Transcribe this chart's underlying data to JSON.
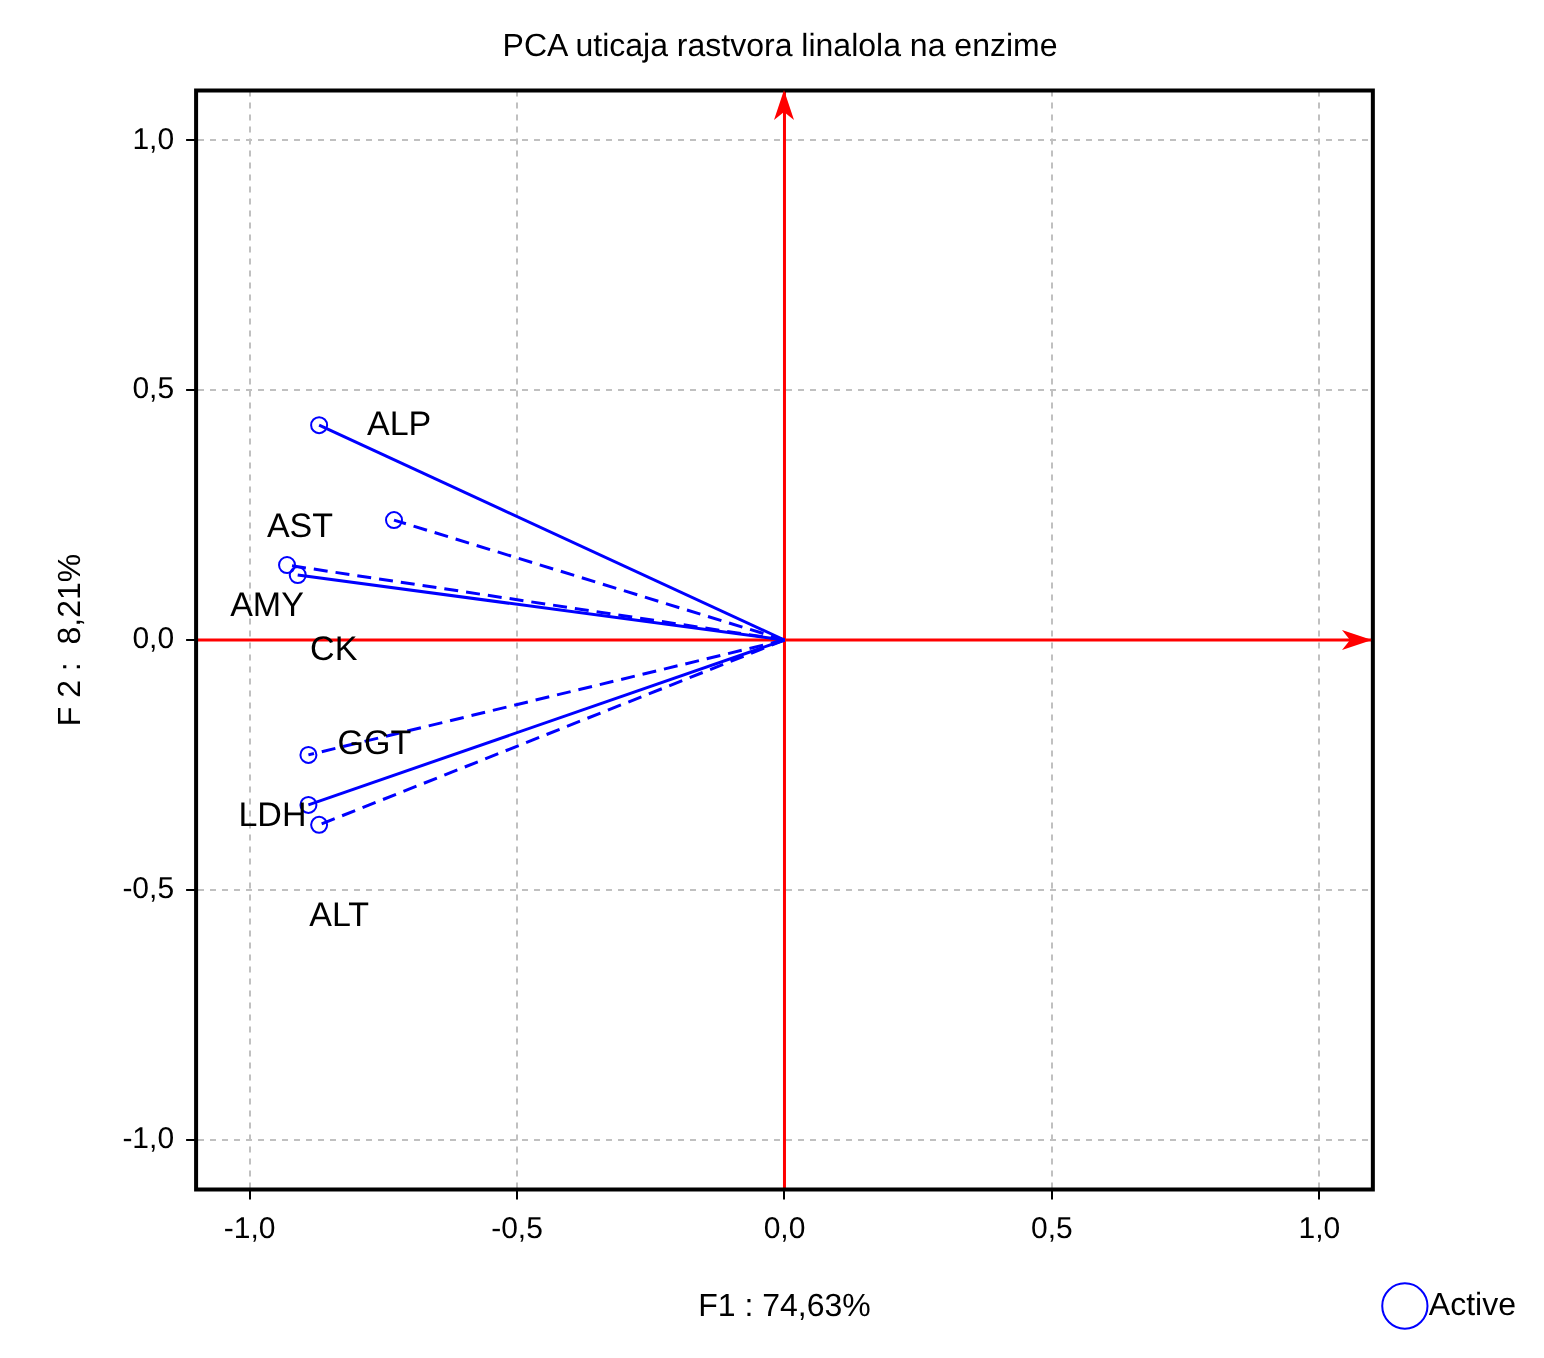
{
  "chart_data": {
    "type": "scatter",
    "title": "PCA uticaja rastvora linalola na enzime",
    "xlabel": "F1 : 74,63%",
    "ylabel": "F 2 :  8,21%",
    "xlim": [
      -1.1,
      1.1
    ],
    "ylim": [
      -1.1,
      1.1
    ],
    "xticks": [
      {
        "value": -1,
        "label": "-1,0"
      },
      {
        "value": -0.5,
        "label": "-0,5"
      },
      {
        "value": 0,
        "label": "0,0"
      },
      {
        "value": 0.5,
        "label": "0,5"
      },
      {
        "value": 1,
        "label": "1,0"
      }
    ],
    "yticks": [
      {
        "value": -1,
        "label": "-1,0"
      },
      {
        "value": -0.5,
        "label": "-0,5"
      },
      {
        "value": 0,
        "label": "0,0"
      },
      {
        "value": 0.5,
        "label": "0,5"
      },
      {
        "value": 1,
        "label": "1,0"
      }
    ],
    "grid": true,
    "legend": "bottom right",
    "series": [
      {
        "name": "Active",
        "type": "scatter",
        "color": "#0000ff",
        "marker": "circle",
        "x": [
          -0.87,
          -0.73,
          -0.93,
          -0.91,
          -0.89,
          -0.89,
          -0.87
        ],
        "values": [
          0.43,
          0.24,
          0.15,
          0.13,
          -0.23,
          -0.33,
          -0.37
        ]
      },
      {
        "type": "line",
        "color": "#0000ff",
        "marker": "none",
        "line_style": "solid",
        "x": [
          0,
          -0.87
        ],
        "values": [
          0,
          0.43
        ]
      },
      {
        "type": "line",
        "color": "#0000ff",
        "marker": "none",
        "line_style": "dashed",
        "x": [
          0,
          -0.73
        ],
        "values": [
          0,
          0.24
        ]
      },
      {
        "type": "line",
        "color": "#0000ff",
        "marker": "none",
        "line_style": "dashed",
        "x": [
          0,
          -0.93
        ],
        "values": [
          0,
          0.15
        ]
      },
      {
        "type": "line",
        "color": "#0000ff",
        "marker": "none",
        "line_style": "solid",
        "x": [
          0,
          -0.91
        ],
        "values": [
          0,
          0.13
        ]
      },
      {
        "type": "line",
        "color": "#0000ff",
        "marker": "none",
        "line_style": "dashed",
        "x": [
          0,
          -0.89
        ],
        "values": [
          0,
          -0.23
        ]
      },
      {
        "type": "line",
        "color": "#0000ff",
        "marker": "none",
        "line_style": "solid",
        "x": [
          0,
          -0.89
        ],
        "values": [
          0,
          -0.33
        ]
      },
      {
        "type": "line",
        "color": "#0000ff",
        "marker": "none",
        "line_style": "dashed",
        "x": [
          0,
          -0.87
        ],
        "values": [
          0,
          -0.37
        ]
      },
      {
        "type": "line",
        "color": "#ff0000",
        "marker": "none",
        "line_style": "solid",
        "x": [
          0,
          0
        ],
        "values": [
          -1.1,
          1.1
        ]
      },
      {
        "type": "line",
        "color": "#ff0000",
        "marker": "none",
        "line_style": "solid",
        "x": [
          -1.1,
          1.1
        ],
        "values": [
          0,
          0
        ]
      }
    ],
    "annotations": [
      {
        "text": "ALP",
        "x": -0.87,
        "y": 0.43
      },
      {
        "text": "AST",
        "x": -0.73,
        "y": 0.24
      },
      {
        "text": "AMY",
        "x": -0.93,
        "y": 0.15
      },
      {
        "text": "CK",
        "x": -0.91,
        "y": 0.13
      },
      {
        "text": "GGT",
        "x": -0.89,
        "y": -0.23
      },
      {
        "text": "LDH",
        "x": -0.89,
        "y": -0.33
      },
      {
        "text": "ALT",
        "x": -0.87,
        "y": -0.37
      }
    ]
  }
}
